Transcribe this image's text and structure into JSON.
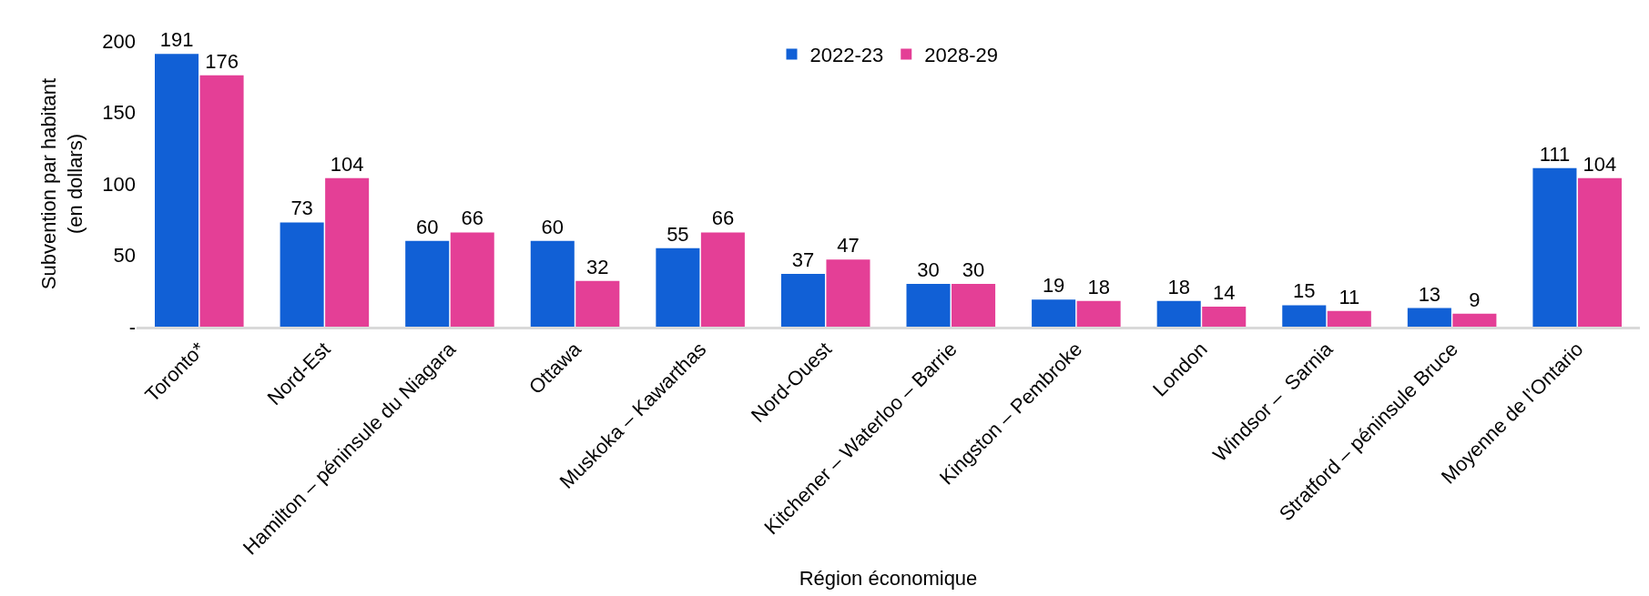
{
  "chart_data": {
    "type": "bar",
    "xlabel": "Région économique",
    "ylabel": "Subvention par habitant\n(en dollars)",
    "categories": [
      "Toronto*",
      "Nord-Est",
      "Hamilton – péninsule du Niagara",
      "Ottawa",
      "Muskoka – Kawarthas",
      "Nord-Ouest",
      "Kitchener – Waterloo – Barrie",
      "Kingston – Pembroke",
      "London",
      "Windsor –  Sarnia",
      "Stratford – péninsule Bruce",
      "Moyenne de l’Ontario"
    ],
    "series": [
      {
        "name": "2022-23",
        "color": "#1160d6",
        "values": [
          191,
          73,
          60,
          60,
          55,
          37,
          30,
          19,
          18,
          15,
          13,
          111
        ]
      },
      {
        "name": "2028-29",
        "color": "#e43f96",
        "values": [
          176,
          104,
          66,
          32,
          66,
          47,
          30,
          18,
          14,
          11,
          9,
          104
        ]
      }
    ],
    "ylim": [
      0,
      200
    ],
    "yticks": [
      {
        "value": 0,
        "label": "-"
      },
      50,
      100,
      150,
      200
    ],
    "data_labels": true,
    "legend": "top"
  }
}
